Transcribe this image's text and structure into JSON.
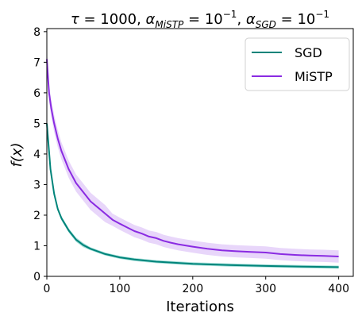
{
  "chart_data": {
    "type": "line",
    "title": "τ = 1000, α_MiSTP = 10⁻¹, α_SGD = 10⁻¹",
    "title_parts": {
      "tau_sym": "τ",
      "tau_val": " = 1000, ",
      "alpha1_sym": "α",
      "alpha1_sub": "MiSTP",
      "eq1": " = 10",
      "exp1": "−1",
      "sep": ", ",
      "alpha2_sym": "α",
      "alpha2_sub": "SGD",
      "eq2": " = 10",
      "exp2": "−1"
    },
    "xlabel": "Iterations",
    "ylabel": "f(x)",
    "xlim": [
      0,
      420
    ],
    "ylim": [
      0,
      8.1
    ],
    "xticks": [
      "0",
      "100",
      "200",
      "300",
      "400"
    ],
    "yticks": [
      "0",
      "1",
      "2",
      "3",
      "4",
      "5",
      "6",
      "7",
      "8"
    ],
    "legend_position": "top-right",
    "series": [
      {
        "name": "SGD",
        "color": "#00847a",
        "band_color": "#5ac4b9",
        "x": [
          0,
          5,
          10,
          15,
          20,
          30,
          40,
          50,
          60,
          80,
          100,
          120,
          150,
          200,
          250,
          300,
          350,
          400
        ],
        "y": [
          5.0,
          3.5,
          2.7,
          2.2,
          1.9,
          1.5,
          1.2,
          1.02,
          0.9,
          0.73,
          0.62,
          0.55,
          0.48,
          0.41,
          0.37,
          0.34,
          0.32,
          0.3
        ],
        "band": 0.05
      },
      {
        "name": "MiSTP",
        "color": "#8a2be2",
        "band_color": "#d6b5f5",
        "x": [
          0,
          3,
          6,
          10,
          15,
          20,
          25,
          30,
          40,
          50,
          60,
          70,
          80,
          90,
          100,
          110,
          120,
          130,
          140,
          150,
          160,
          170,
          180,
          200,
          220,
          240,
          260,
          280,
          300,
          320,
          340,
          360,
          380,
          400
        ],
        "y": [
          7.1,
          6.0,
          5.5,
          5.0,
          4.5,
          4.1,
          3.8,
          3.5,
          3.05,
          2.75,
          2.45,
          2.25,
          2.05,
          1.85,
          1.72,
          1.6,
          1.48,
          1.4,
          1.3,
          1.25,
          1.16,
          1.1,
          1.05,
          0.97,
          0.9,
          0.85,
          0.82,
          0.8,
          0.78,
          0.73,
          0.7,
          0.68,
          0.67,
          0.65
        ],
        "band": 0.2
      }
    ]
  }
}
